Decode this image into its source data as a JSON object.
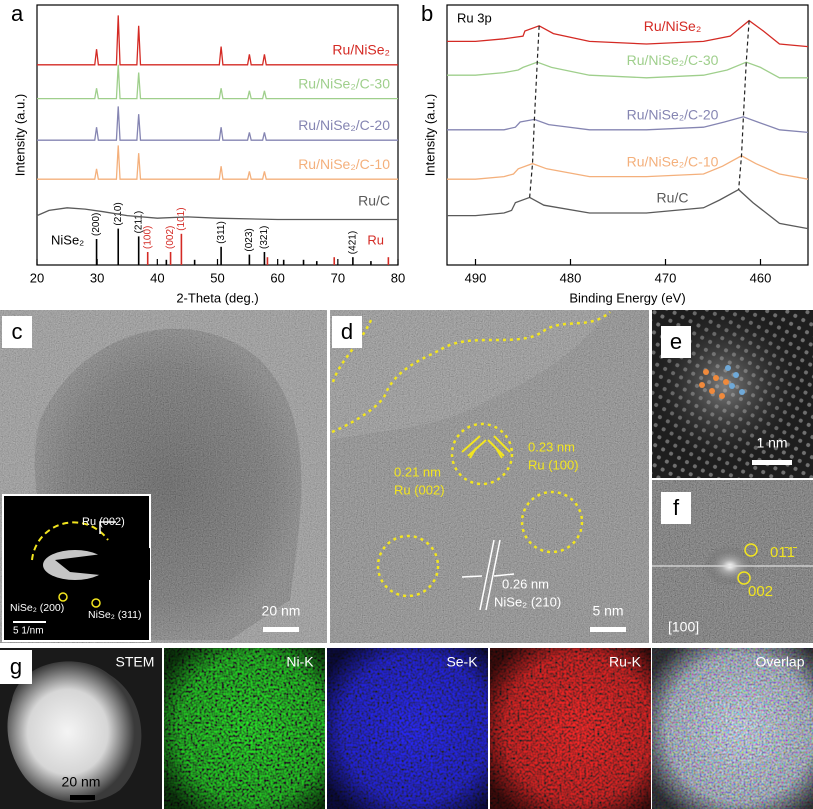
{
  "chart_data": [
    {
      "type": "line",
      "panel": "a",
      "xlabel": "2-Theta (deg.)",
      "ylabel": "Intensity (a.u.)",
      "xlim": [
        20,
        80
      ],
      "xticks": [
        20,
        30,
        40,
        50,
        60,
        70,
        80
      ],
      "ylim": [
        0,
        100
      ],
      "series": [
        {
          "name": "Ru/NiSe₂",
          "color": "#d42a24",
          "x": [
            20,
            29.6,
            29.9,
            30.2,
            33.2,
            33.5,
            33.8,
            36.6,
            36.9,
            37.2,
            50.3,
            50.6,
            50.9,
            55.0,
            55.3,
            55.6,
            57.5,
            57.8,
            58.1,
            80
          ],
          "values": [
            77,
            77,
            83,
            77,
            77,
            96,
            77,
            77,
            92,
            77,
            77,
            84,
            77,
            77,
            81,
            77,
            77,
            81,
            77,
            77
          ]
        },
        {
          "name": "Ru/NiSe₂/C-30",
          "color": "#9fcf8c",
          "x": [
            20,
            29.6,
            29.9,
            30.2,
            33.2,
            33.5,
            33.8,
            36.6,
            36.9,
            37.2,
            50.3,
            50.6,
            50.9,
            55.0,
            55.3,
            55.6,
            57.5,
            57.8,
            58.1,
            80
          ],
          "values": [
            64,
            64,
            68,
            64,
            64,
            77,
            64,
            64,
            74,
            64,
            64,
            68,
            64,
            64,
            67,
            64,
            64,
            67,
            64,
            64
          ]
        },
        {
          "name": "Ru/NiSe₂/C-20",
          "color": "#8585b2",
          "x": [
            20,
            29.6,
            29.9,
            30.2,
            33.2,
            33.5,
            33.8,
            36.6,
            36.9,
            37.2,
            50.3,
            50.6,
            50.9,
            55.0,
            55.3,
            55.6,
            57.5,
            57.8,
            58.1,
            80
          ],
          "values": [
            48,
            48,
            53,
            48,
            48,
            61,
            48,
            48,
            58,
            48,
            48,
            53,
            48,
            48,
            51,
            48,
            48,
            51,
            48,
            48
          ]
        },
        {
          "name": "Ru/NiSe₂/C-10",
          "color": "#f4b07c",
          "x": [
            20,
            29.6,
            29.9,
            30.2,
            33.2,
            33.5,
            33.8,
            36.6,
            36.9,
            37.2,
            50.3,
            50.6,
            50.9,
            55.0,
            55.3,
            55.6,
            57.5,
            57.8,
            58.1,
            80
          ],
          "values": [
            33,
            33,
            37,
            33,
            33,
            46,
            33,
            33,
            43,
            33,
            33,
            38,
            33,
            33,
            36,
            33,
            33,
            36,
            33,
            33
          ]
        },
        {
          "name": "Ru/C",
          "color": "#5a5a5a",
          "x": [
            20,
            22,
            25,
            28,
            31,
            35,
            40,
            45,
            50,
            60,
            70,
            80
          ],
          "values": [
            19,
            21,
            22,
            21.5,
            20.5,
            19,
            18,
            18.5,
            18,
            17.5,
            17.5,
            17.5
          ]
        }
      ],
      "references": [
        {
          "name": "NiSe₂",
          "color": "#000000",
          "x": [
            29.9,
            33.5,
            36.9,
            41.5,
            46.2,
            50.6,
            55.3,
            57.8,
            61.0,
            64.3,
            66.5,
            72.5,
            75.5
          ],
          "values": [
            10,
            14,
            11,
            2,
            2,
            7,
            4,
            5,
            2,
            2,
            1.5,
            3,
            1.5
          ],
          "labels": [
            "(200)",
            "(210)",
            "(211)",
            null,
            null,
            "(311)",
            "(023)",
            "(321)",
            null,
            null,
            null,
            "(421)",
            null
          ]
        },
        {
          "name": "Ru",
          "color": "#d42a24",
          "x": [
            38.4,
            42.2,
            44.0,
            58.3,
            69.4,
            78.4
          ],
          "values": [
            5,
            5,
            12,
            3,
            3,
            3
          ],
          "labels": [
            "(100)",
            "(002)",
            "(101)",
            null,
            null,
            null
          ]
        }
      ]
    },
    {
      "type": "line",
      "panel": "b",
      "annotation": "Ru 3p",
      "xlabel": "Binding Energy (eV)",
      "ylabel": "Intensity (a.u.)",
      "xlim": [
        493,
        455
      ],
      "xticks": [
        490,
        480,
        470,
        460
      ],
      "ylim": [
        0,
        100
      ],
      "series": [
        {
          "name": "Ru/NiSe₂",
          "color": "#d42a24",
          "x": [
            493,
            490,
            487,
            485,
            484.8,
            483.3,
            481.8,
            478,
            472,
            466,
            463.2,
            461.2,
            459.7,
            458,
            455
          ],
          "values": [
            86,
            86,
            87,
            88,
            90,
            92,
            89,
            86,
            85,
            86,
            88,
            94,
            90,
            85,
            84
          ]
        },
        {
          "name": "Ru/NiSe₂/C-30",
          "color": "#9fcf8c",
          "x": [
            493,
            490,
            487,
            485.5,
            485,
            483.5,
            482,
            478,
            472,
            466,
            463.5,
            461.5,
            460,
            458,
            455
          ],
          "values": [
            73,
            73,
            74,
            75,
            76,
            78,
            76,
            73,
            72,
            73,
            75,
            78,
            76,
            72,
            72
          ]
        },
        {
          "name": "Ru/NiSe₂/C-20",
          "color": "#8585b2",
          "x": [
            493,
            490,
            487,
            485.8,
            485.3,
            483.8,
            482.3,
            478,
            472,
            466,
            463.8,
            461.8,
            460.3,
            458,
            455
          ],
          "values": [
            52,
            52,
            52,
            53,
            55,
            56,
            54,
            52,
            52,
            53,
            55,
            57,
            55,
            52,
            51
          ]
        },
        {
          "name": "Ru/NiSe₂/C-10",
          "color": "#f4b07c",
          "x": [
            493,
            490,
            487,
            486,
            485.5,
            484,
            482.5,
            478,
            472,
            466,
            464,
            462,
            460.5,
            458,
            455
          ],
          "values": [
            33,
            33,
            34,
            35,
            37,
            39,
            37,
            34,
            34,
            35,
            38,
            42,
            39,
            35,
            33
          ]
        },
        {
          "name": "Ru/C",
          "color": "#5a5a5a",
          "x": [
            493,
            490,
            487,
            486.2,
            485.8,
            484.3,
            482.8,
            478,
            472,
            466,
            464.3,
            462.3,
            460.8,
            458,
            455
          ],
          "values": [
            19,
            19,
            20,
            21,
            24,
            26,
            23,
            20,
            20,
            22,
            25,
            29,
            24,
            16,
            14
          ]
        }
      ]
    }
  ],
  "images": [
    {
      "label": "c",
      "texts": [
        "Ru (002)",
        "NiSe₂ (200)",
        "NiSe₂ (311)",
        "5 1/nm",
        "20 nm"
      ]
    },
    {
      "label": "d",
      "texts": [
        "0.21 nm",
        "Ru (002)",
        "0.23 nm",
        "Ru (100)",
        "0.26 nm",
        "NiSe₂ (210)",
        "5 nm"
      ]
    },
    {
      "label": "e",
      "texts": [
        "1 nm"
      ]
    },
    {
      "label": "f",
      "texts": [
        "01̄1̄",
        "002",
        "[100]"
      ]
    },
    {
      "label": "g",
      "texts": [
        "STEM",
        "Ni-K",
        "Se-K",
        "Ru-K",
        "Overlap",
        "20 nm"
      ]
    }
  ]
}
